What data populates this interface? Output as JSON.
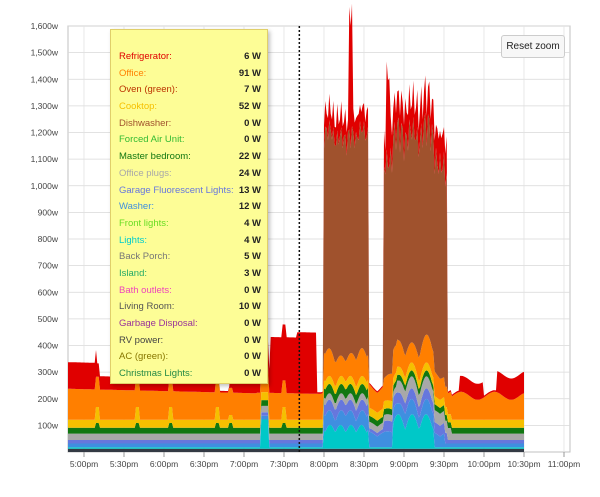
{
  "reset_zoom_label": "Reset zoom",
  "chart_data": {
    "type": "area",
    "stacked": true,
    "x_ticks": [
      "5:00pm",
      "5:30pm",
      "6:00pm",
      "6:30pm",
      "7:00pm",
      "7:30pm",
      "8:00pm",
      "8:30pm",
      "9:00pm",
      "9:30pm",
      "10:00pm",
      "10:30pm",
      "11:00pm"
    ],
    "y_ticks": [
      "100w",
      "200w",
      "300w",
      "400w",
      "500w",
      "600w",
      "700w",
      "800w",
      "900w",
      "1,000w",
      "1,100w",
      "1,200w",
      "1,300w",
      "1,400w",
      "1,500w",
      "1,600w"
    ],
    "ylim": [
      0,
      1600
    ],
    "grid": true,
    "crosshair_x": "7:40pm",
    "series": [
      {
        "name": "Refrigerator",
        "color": "#e00000",
        "value": "6 W"
      },
      {
        "name": "Office",
        "color": "#ff7f00",
        "value": "91 W"
      },
      {
        "name": "Oven (green)",
        "color": "#bb3300",
        "value": "7 W"
      },
      {
        "name": "Cooktop",
        "color": "#f5c000",
        "value": "52 W"
      },
      {
        "name": "Dishwasher",
        "color": "#a0522d",
        "value": "0 W"
      },
      {
        "name": "Forced Air Unit",
        "color": "#33bb33",
        "value": "0 W"
      },
      {
        "name": "Master bedroom",
        "color": "#117711",
        "value": "22 W"
      },
      {
        "name": "Office plugs",
        "color": "#a8a8a8",
        "value": "24 W"
      },
      {
        "name": "Garage Fluorescent Lights",
        "color": "#6677dd",
        "value": "13 W"
      },
      {
        "name": "Washer",
        "color": "#3f8fe0",
        "value": "12 W"
      },
      {
        "name": "Front lights",
        "color": "#66dd22",
        "value": "4 W"
      },
      {
        "name": "Lights",
        "color": "#00cccc",
        "value": "4 W"
      },
      {
        "name": "Back Porch",
        "color": "#777777",
        "value": "5 W"
      },
      {
        "name": "Island",
        "color": "#22aa66",
        "value": "3 W"
      },
      {
        "name": "Bath outlets",
        "color": "#ee44bb",
        "value": "0 W"
      },
      {
        "name": "Living Room",
        "color": "#555555",
        "value": "10 W"
      },
      {
        "name": "Garbage Disposal",
        "color": "#993399",
        "value": "0 W"
      },
      {
        "name": "RV power",
        "color": "#444444",
        "value": "0 W"
      },
      {
        "name": "AC (green)",
        "color": "#887700",
        "value": "0 W"
      },
      {
        "name": "Christmas Lights",
        "color": "#228844",
        "value": "0 W"
      }
    ],
    "layers": [
      {
        "name": "Living Room",
        "color": "#333a44",
        "profile": "living"
      },
      {
        "name": "Lights",
        "color": "#00c8c8",
        "profile": "lights"
      },
      {
        "name": "Washer",
        "color": "#3f8fe0",
        "profile": "washer"
      },
      {
        "name": "Garage Fluorescent Lights",
        "color": "#6677dd",
        "profile": "garage"
      },
      {
        "name": "Office plugs",
        "color": "#a8a8a8",
        "profile": "plugs"
      },
      {
        "name": "Master bedroom",
        "color": "#117711",
        "profile": "master"
      },
      {
        "name": "Cooktop",
        "color": "#f5c000",
        "profile": "cooktop"
      },
      {
        "name": "Office",
        "color": "#ff7f00",
        "profile": "office"
      },
      {
        "name": "Dishwasher",
        "color": "#a0522d",
        "profile": "dishwasher"
      },
      {
        "name": "Refrigerator",
        "color": "#e00000",
        "profile": "fridge"
      }
    ]
  }
}
